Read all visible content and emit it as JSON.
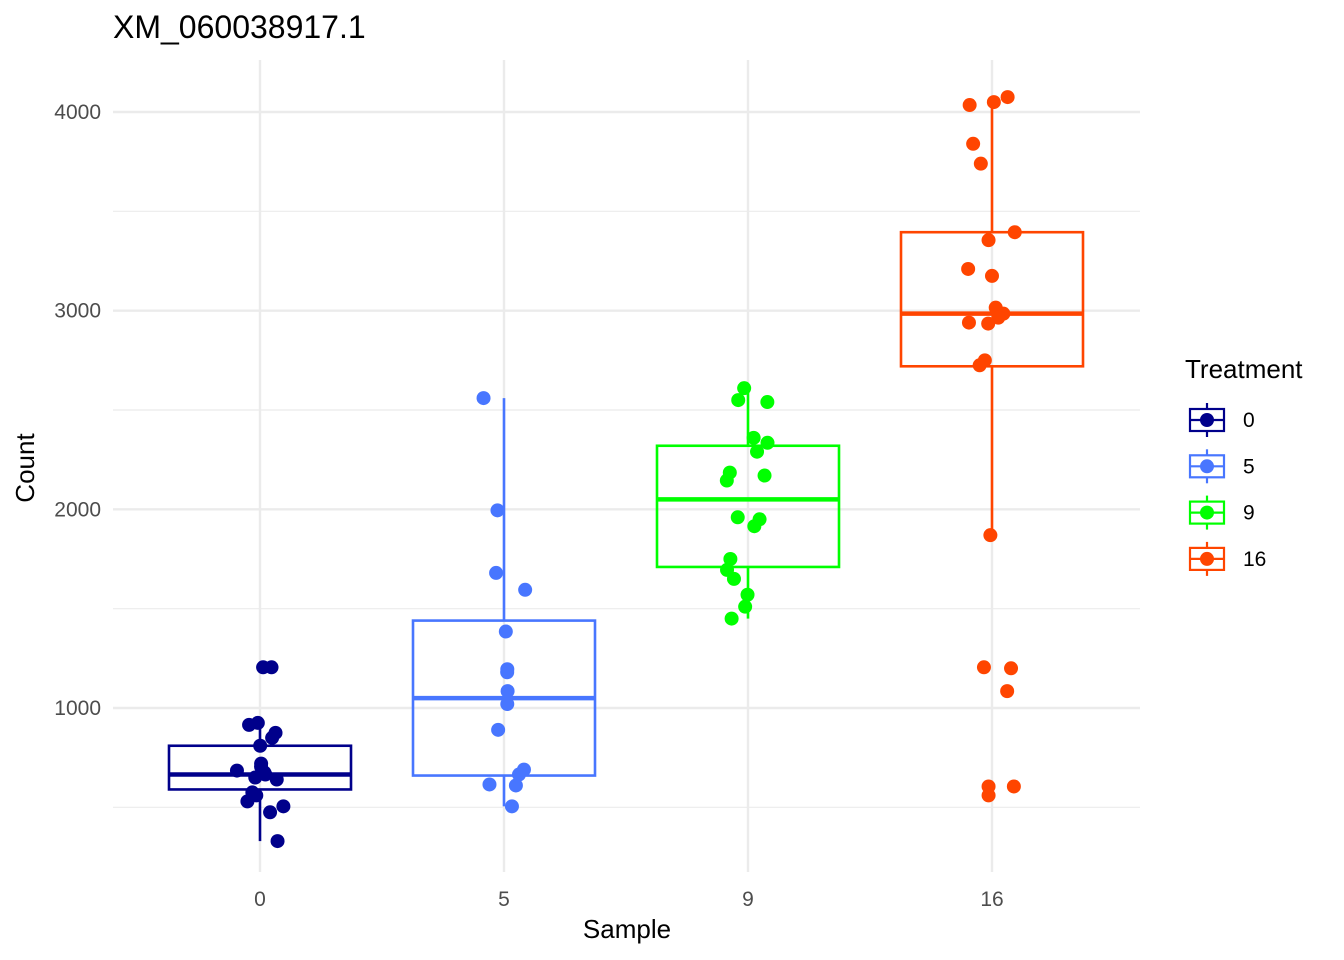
{
  "chart_data": {
    "type": "boxplot",
    "title": "XM_060038917.1",
    "xlabel": "Sample",
    "ylabel": "Count",
    "categories": [
      "0",
      "5",
      "9",
      "16"
    ],
    "y_ticks": [
      1000,
      2000,
      3000,
      4000
    ],
    "ylim": [
      230,
      4160
    ],
    "grid": true,
    "legend": {
      "title": "Treatment",
      "position": "right",
      "entries": [
        "0",
        "5",
        "9",
        "16"
      ]
    },
    "series": [
      {
        "name": "0",
        "color": "#00008B",
        "box": {
          "lower_whisker": 330,
          "q1": 590,
          "median": 665,
          "q3": 810,
          "upper_whisker": 925
        },
        "points": [
          {
            "x": "0",
            "y": 1205
          },
          {
            "x": "0",
            "y": 1205
          },
          {
            "x": "0",
            "y": 925
          },
          {
            "x": "0",
            "y": 915
          },
          {
            "x": "0",
            "y": 875
          },
          {
            "x": "0",
            "y": 850
          },
          {
            "x": "0",
            "y": 810
          },
          {
            "x": "0",
            "y": 720
          },
          {
            "x": "0",
            "y": 705
          },
          {
            "x": "0",
            "y": 685
          },
          {
            "x": "0",
            "y": 675
          },
          {
            "x": "0",
            "y": 665
          },
          {
            "x": "0",
            "y": 650
          },
          {
            "x": "0",
            "y": 640
          },
          {
            "x": "0",
            "y": 575
          },
          {
            "x": "0",
            "y": 560
          },
          {
            "x": "0",
            "y": 530
          },
          {
            "x": "0",
            "y": 505
          },
          {
            "x": "0",
            "y": 475
          },
          {
            "x": "0",
            "y": 330
          }
        ]
      },
      {
        "name": "5",
        "color": "#4876FF",
        "box": {
          "lower_whisker": 505,
          "q1": 660,
          "median": 1050,
          "q3": 1440,
          "upper_whisker": 2560
        },
        "points": [
          {
            "x": "5",
            "y": 2560
          },
          {
            "x": "5",
            "y": 1995
          },
          {
            "x": "5",
            "y": 1680
          },
          {
            "x": "5",
            "y": 1595
          },
          {
            "x": "5",
            "y": 1385
          },
          {
            "x": "5",
            "y": 1195
          },
          {
            "x": "5",
            "y": 1180
          },
          {
            "x": "5",
            "y": 1085
          },
          {
            "x": "5",
            "y": 1020
          },
          {
            "x": "5",
            "y": 890
          },
          {
            "x": "5",
            "y": 690
          },
          {
            "x": "5",
            "y": 665
          },
          {
            "x": "5",
            "y": 615
          },
          {
            "x": "5",
            "y": 610
          },
          {
            "x": "5",
            "y": 505
          }
        ]
      },
      {
        "name": "9",
        "color": "#00FF00",
        "box": {
          "lower_whisker": 1450,
          "q1": 1710,
          "median": 2050,
          "q3": 2320,
          "upper_whisker": 2600
        },
        "points": [
          {
            "x": "9",
            "y": 2610
          },
          {
            "x": "9",
            "y": 2550
          },
          {
            "x": "9",
            "y": 2540
          },
          {
            "x": "9",
            "y": 2360
          },
          {
            "x": "9",
            "y": 2335
          },
          {
            "x": "9",
            "y": 2290
          },
          {
            "x": "9",
            "y": 2185
          },
          {
            "x": "9",
            "y": 2170
          },
          {
            "x": "9",
            "y": 2145
          },
          {
            "x": "9",
            "y": 1960
          },
          {
            "x": "9",
            "y": 1950
          },
          {
            "x": "9",
            "y": 1915
          },
          {
            "x": "9",
            "y": 1750
          },
          {
            "x": "9",
            "y": 1695
          },
          {
            "x": "9",
            "y": 1650
          },
          {
            "x": "9",
            "y": 1570
          },
          {
            "x": "9",
            "y": 1510
          },
          {
            "x": "9",
            "y": 1450
          }
        ]
      },
      {
        "name": "16",
        "color": "#FF4500",
        "box": {
          "lower_whisker": 1870,
          "q1": 2720,
          "median": 2985,
          "q3": 3395,
          "upper_whisker": 4060
        },
        "points": [
          {
            "x": "16",
            "y": 4075
          },
          {
            "x": "16",
            "y": 4050
          },
          {
            "x": "16",
            "y": 4035
          },
          {
            "x": "16",
            "y": 3840
          },
          {
            "x": "16",
            "y": 3740
          },
          {
            "x": "16",
            "y": 3395
          },
          {
            "x": "16",
            "y": 3355
          },
          {
            "x": "16",
            "y": 3210
          },
          {
            "x": "16",
            "y": 3175
          },
          {
            "x": "16",
            "y": 3015
          },
          {
            "x": "16",
            "y": 2985
          },
          {
            "x": "16",
            "y": 2965
          },
          {
            "x": "16",
            "y": 2940
          },
          {
            "x": "16",
            "y": 2935
          },
          {
            "x": "16",
            "y": 2750
          },
          {
            "x": "16",
            "y": 2725
          },
          {
            "x": "16",
            "y": 1870
          },
          {
            "x": "16",
            "y": 1205
          },
          {
            "x": "16",
            "y": 1200
          },
          {
            "x": "16",
            "y": 1085
          },
          {
            "x": "16",
            "y": 605
          },
          {
            "x": "16",
            "y": 605
          },
          {
            "x": "16",
            "y": 560
          }
        ]
      }
    ]
  }
}
